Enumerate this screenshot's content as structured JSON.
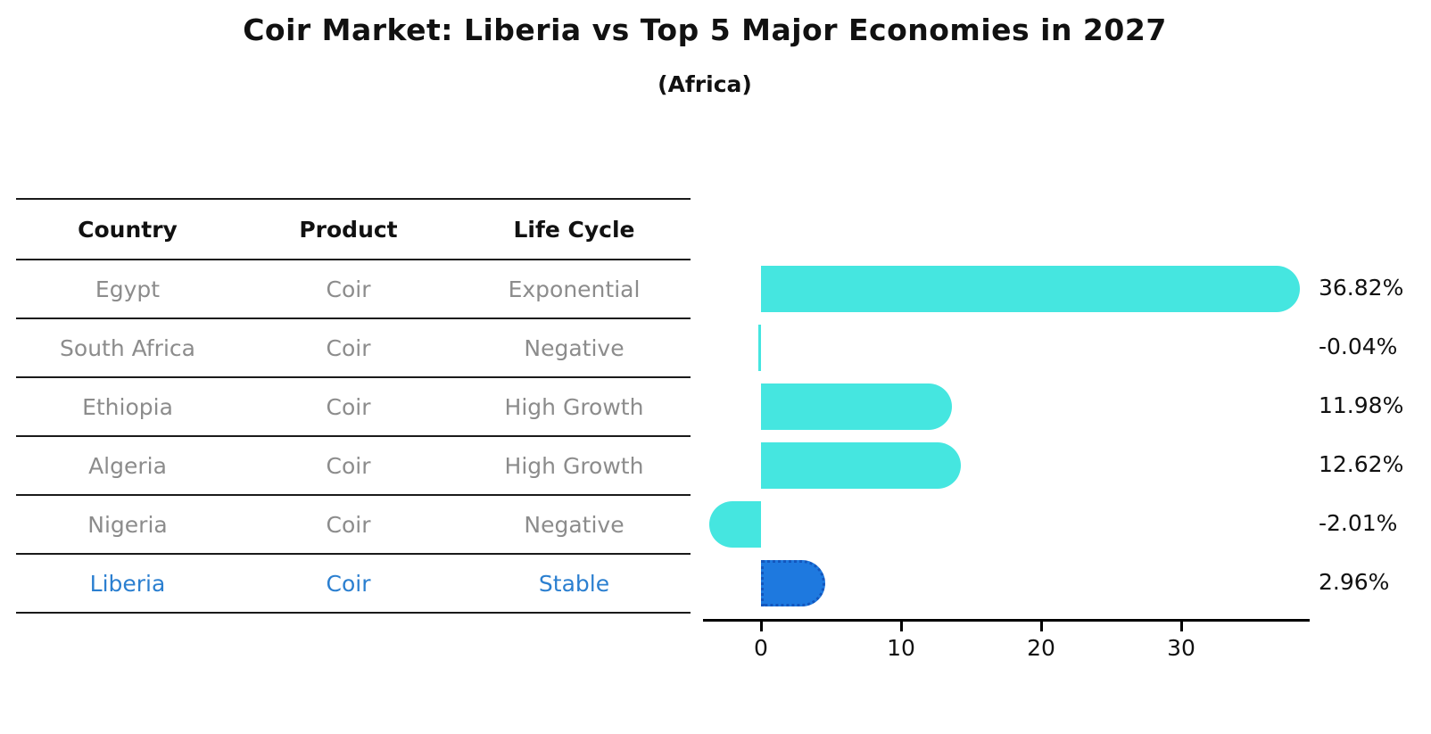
{
  "title": "Coir Market: Liberia vs Top 5 Major Economies in 2027",
  "subtitle": "(Africa)",
  "table": {
    "headers": [
      "Country",
      "Product",
      "Life Cycle"
    ],
    "rows": [
      {
        "country": "Egypt",
        "product": "Coir",
        "life_cycle": "Exponential",
        "highlight": false
      },
      {
        "country": "South Africa",
        "product": "Coir",
        "life_cycle": "Negative",
        "highlight": false
      },
      {
        "country": "Ethiopia",
        "product": "Coir",
        "life_cycle": "High Growth",
        "highlight": false
      },
      {
        "country": "Algeria",
        "product": "Coir",
        "life_cycle": "High Growth",
        "highlight": false
      },
      {
        "country": "Nigeria",
        "product": "Coir",
        "life_cycle": "Negative",
        "highlight": false
      },
      {
        "country": "Liberia",
        "product": "Coir",
        "life_cycle": "Stable",
        "highlight": true
      }
    ]
  },
  "chart_data": {
    "type": "bar",
    "orientation": "horizontal",
    "title": "Coir Market: Liberia vs Top 5 Major Economies in 2027 (Africa)",
    "categories": [
      "Egypt",
      "South Africa",
      "Ethiopia",
      "Algeria",
      "Nigeria",
      "Liberia"
    ],
    "values": [
      36.82,
      -0.04,
      11.98,
      12.62,
      -2.01,
      2.96
    ],
    "value_labels": [
      "36.82%",
      "-0.04%",
      "11.98%",
      "12.62%",
      "-2.01%",
      "2.96%"
    ],
    "unit": "percent",
    "xticks": [
      0,
      10,
      20,
      30
    ],
    "xlim": [
      -4.2,
      39.2
    ],
    "grid": false,
    "legend": false,
    "bar_color": "#45E6E0",
    "highlight_index": 5,
    "highlight_bar_color": "#1E79DF",
    "highlight_border_color": "#1356BD"
  },
  "colors": {
    "header_text": "#111111",
    "cell_text": "#8c8c8c",
    "highlight_text": "#2b7fd0",
    "axis": "#000000",
    "value_label": "#111111"
  }
}
